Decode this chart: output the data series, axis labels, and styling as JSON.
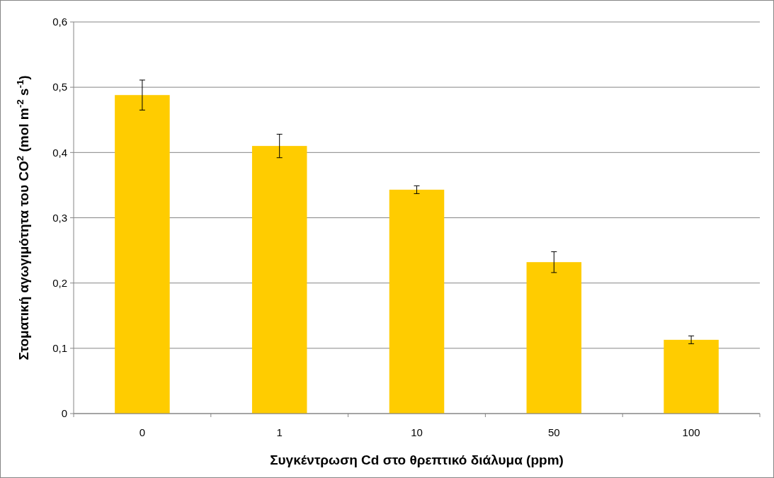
{
  "chart_data": {
    "type": "bar",
    "xlabel": "Συγκέντρωση Cd στο θρεπτικό διάλυμα (ppm)",
    "ylabel": "Στοματική αγωγιμότητα του CO$^{2}$ (mol m$^{-2}$ s$^{-1}$)",
    "categories": [
      "0",
      "1",
      "10",
      "50",
      "100"
    ],
    "values": [
      0.488,
      0.41,
      0.343,
      0.232,
      0.113
    ],
    "errors": [
      0.023,
      0.018,
      0.006,
      0.016,
      0.006
    ],
    "color": "#ffcc00",
    "ylim": [
      0,
      0.6
    ],
    "yticks": [
      0,
      {
        "value": 0.1,
        "label": "0,1"
      },
      {
        "value": 0.2,
        "label": "0,2"
      },
      {
        "value": 0.3,
        "label": "0,3"
      },
      {
        "value": 0.4,
        "label": "0,4"
      },
      {
        "value": 0.5,
        "label": "0,5"
      },
      {
        "value": 0.6,
        "label": "0,6"
      }
    ],
    "grid": "y"
  }
}
